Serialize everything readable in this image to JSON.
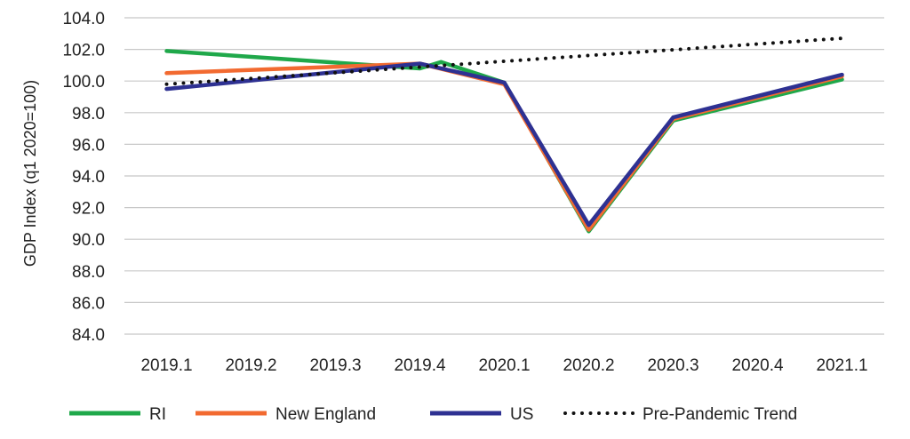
{
  "chart_data": {
    "type": "line",
    "title": "",
    "xlabel": "",
    "ylabel": "GDP Index (q1 2020=100)",
    "categories": [
      "2019.1",
      "2019.2",
      "2019.3",
      "2019.4",
      "2020.1",
      "2020.2",
      "2020.3",
      "2020.4",
      "2021.1"
    ],
    "ylim": [
      84,
      104
    ],
    "yticks": [
      "84.0",
      "86.0",
      "88.0",
      "90.0",
      "92.0",
      "94.0",
      "96.0",
      "98.0",
      "100.0",
      "102.0",
      "104.0"
    ],
    "grid": "horizontal",
    "legend_position": "bottom",
    "series": [
      {
        "name": "RI",
        "color": "#1fa84a",
        "style": "solid",
        "points": [
          [
            0,
            101.9
          ],
          [
            3,
            100.8
          ],
          [
            3.25,
            101.2
          ],
          [
            4,
            99.9
          ],
          [
            5,
            90.5
          ],
          [
            6,
            97.5
          ],
          [
            8,
            100.1
          ]
        ]
      },
      {
        "name": "New England",
        "color": "#f26a30",
        "style": "solid",
        "points": [
          [
            0,
            100.5
          ],
          [
            3,
            101.1
          ],
          [
            4,
            99.8
          ],
          [
            5,
            90.6
          ],
          [
            6,
            97.6
          ],
          [
            8,
            100.3
          ]
        ]
      },
      {
        "name": "US",
        "color": "#2e3192",
        "style": "solid",
        "points": [
          [
            0,
            99.5
          ],
          [
            3,
            101.1
          ],
          [
            4,
            99.9
          ],
          [
            5,
            90.9
          ],
          [
            6,
            97.7
          ],
          [
            8,
            100.4
          ]
        ]
      },
      {
        "name": "Pre-Pandemic Trend",
        "color": "#111111",
        "style": "dotted",
        "points": [
          [
            0,
            99.8
          ],
          [
            8,
            102.7
          ]
        ]
      }
    ]
  }
}
